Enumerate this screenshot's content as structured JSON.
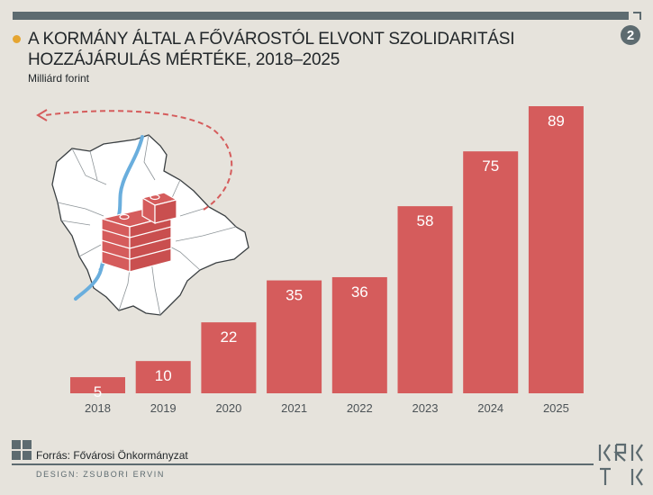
{
  "header": {
    "title": "A KORMÁNY ÁLTAL A FŐVÁROSTÓL ELVONT SZOLIDARITÁSI HOZZÁJÁRULÁS MÉRTÉKE, 2018–2025",
    "subtitle": "Milliárd forint",
    "page_number": "2"
  },
  "footer": {
    "source": "Forrás: Fővárosi Önkormányzat",
    "design_credit": "DESIGN: ZSUBORI ERVIN",
    "logo_icon": "krtk-logo-icon"
  },
  "colors": {
    "bar": "#d55c5c",
    "accent_bullet": "#e5a531",
    "frame": "#5d6b70",
    "river": "#6aaedd",
    "background": "#e6e3dc"
  },
  "chart_data": {
    "type": "bar",
    "title": "A KORMÁNY ÁLTAL A FŐVÁROSTÓL ELVONT SZOLIDARITÁSI HOZZÁJÁRULÁS MÉRTÉKE, 2018–2025",
    "ylabel": "Milliárd forint",
    "xlabel": "",
    "categories": [
      "2018",
      "2019",
      "2020",
      "2021",
      "2022",
      "2023",
      "2024",
      "2025"
    ],
    "values": [
      5,
      10,
      22,
      35,
      36,
      58,
      75,
      89
    ],
    "ylim": [
      0,
      89
    ],
    "grid": false,
    "legend": "none",
    "data_labels": true
  }
}
